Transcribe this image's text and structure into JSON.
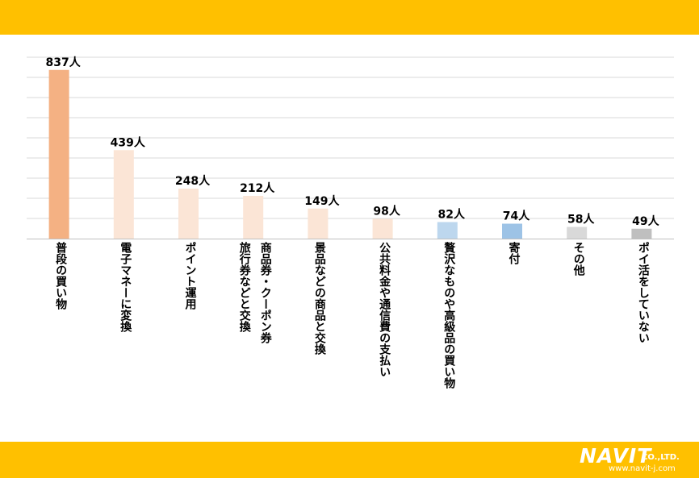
{
  "chart_data": {
    "type": "bar",
    "unit": "人",
    "categories": [
      "普段の買い物",
      "電子マネーに変換",
      "ポイント運用",
      "商品券・クーポン券旅行券などと交換",
      "景品などの商品と交換",
      "公共料金や通信費の支払い",
      "贅沢なものや高級品の買い物",
      "寄付",
      "その他",
      "ポイ活をしていない"
    ],
    "label_lines": [
      [
        "普段の買い物"
      ],
      [
        "電子マネーに変換"
      ],
      [
        "ポイント運用"
      ],
      [
        "商品券・クーポン券",
        "旅行券などと交換"
      ],
      [
        "景品などの商品と交換"
      ],
      [
        "公共料金や通信費の支払い"
      ],
      [
        "贅沢なものや高級品の買い物"
      ],
      [
        "寄付"
      ],
      [
        "その他"
      ],
      [
        "ポイ活をしていない"
      ]
    ],
    "values": [
      837,
      439,
      248,
      212,
      149,
      98,
      82,
      74,
      58,
      49
    ],
    "value_labels": [
      "837人",
      "439人",
      "248人",
      "212人",
      "149人",
      "98人",
      "82人",
      "74人",
      "58人",
      "49人"
    ],
    "colors": [
      "#f4b183",
      "#fbe5d6",
      "#fbe5d6",
      "#fbe5d6",
      "#fbe5d6",
      "#fbe5d6",
      "#bdd7ee",
      "#9dc3e6",
      "#d9d9d9",
      "#bfbfbf"
    ],
    "ylim": [
      0,
      900
    ],
    "grid": true,
    "title": "",
    "xlabel": "",
    "ylabel": ""
  },
  "logo": {
    "name": "NAVIT",
    "company_suffix": "CO.,LTD.",
    "url": "www.navit-j.com"
  }
}
